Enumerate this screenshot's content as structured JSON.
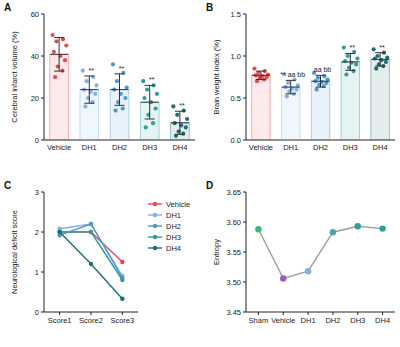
{
  "chart_data": [
    {
      "panel": "A",
      "type": "bar",
      "y_label": "Cerebral infarct volume (%)",
      "categories": [
        "Vehicle",
        "DH1",
        "DH2",
        "DH3",
        "DH4"
      ],
      "values": [
        40.8,
        24,
        24,
        18,
        8.2
      ],
      "errors": [
        8,
        6.5,
        7.5,
        8,
        5.5
      ],
      "points": [
        [
          50,
          48,
          47,
          45,
          42,
          40,
          38,
          35,
          33,
          30
        ],
        [
          33,
          30,
          28,
          26,
          24,
          23,
          22,
          20,
          18,
          16
        ],
        [
          36,
          32,
          28,
          25,
          24,
          22,
          20,
          18,
          15,
          14
        ],
        [
          28,
          26,
          24,
          22,
          20,
          18,
          15,
          12,
          8,
          6
        ],
        [
          16,
          14,
          12,
          10,
          8,
          7,
          6,
          4,
          3,
          2
        ]
      ],
      "colors": [
        "#e84a4f",
        "#7fb2e5",
        "#4a98d6",
        "#2f9e9a",
        "#1f6f72"
      ],
      "annotations": [
        null,
        "**",
        "**",
        "**",
        "**"
      ],
      "ylim": [
        0,
        60
      ],
      "yticks": [
        0,
        20,
        40,
        60
      ]
    },
    {
      "panel": "B",
      "type": "bar",
      "y_label": "Brain weight index (%)",
      "categories": [
        "Vehicle",
        "DH1",
        "DH2",
        "DH3",
        "DH4"
      ],
      "values": [
        0.77,
        0.63,
        0.7,
        0.93,
        0.96
      ],
      "errors": [
        0.05,
        0.08,
        0.07,
        0.1,
        0.08
      ],
      "points": [
        [
          0.85,
          0.82,
          0.8,
          0.78,
          0.77,
          0.76,
          0.75,
          0.74,
          0.72,
          0.7
        ],
        [
          0.78,
          0.72,
          0.68,
          0.65,
          0.63,
          0.61,
          0.6,
          0.58,
          0.55,
          0.52
        ],
        [
          0.8,
          0.76,
          0.74,
          0.72,
          0.7,
          0.69,
          0.68,
          0.66,
          0.64,
          0.6
        ],
        [
          1.1,
          1.05,
          1.0,
          0.97,
          0.94,
          0.92,
          0.9,
          0.86,
          0.82,
          0.78
        ],
        [
          1.08,
          1.04,
          1.0,
          0.98,
          0.97,
          0.95,
          0.93,
          0.9,
          0.88,
          0.85
        ]
      ],
      "colors": [
        "#e84a4f",
        "#7fb2e5",
        "#4a98d6",
        "#2f9e9a",
        "#1f6f72"
      ],
      "annotations": [
        null,
        "** aa bb",
        "aa bb",
        "**",
        "**"
      ],
      "ylim": [
        0,
        1.5
      ],
      "yticks": [
        {
          "value": 0,
          "label": "0.0"
        },
        0.5,
        {
          "value": 1,
          "label": "1.0"
        },
        1.5
      ]
    },
    {
      "panel": "C",
      "type": "line",
      "y_label": "Neurological deficit score",
      "categories": [
        "Score1",
        "Score2",
        "Score3"
      ],
      "series": [
        {
          "name": "Vehicle",
          "color": "#e84a4f",
          "values": [
            2.0,
            2.0,
            1.25
          ]
        },
        {
          "name": "DH1",
          "color": "#7fb2e5",
          "values": [
            2.08,
            2.2,
            0.9
          ]
        },
        {
          "name": "DH2",
          "color": "#4a98d6",
          "values": [
            1.92,
            2.2,
            0.85
          ]
        },
        {
          "name": "DH3",
          "color": "#2f9e9a",
          "values": [
            2.0,
            2.0,
            0.8
          ]
        },
        {
          "name": "DH4",
          "color": "#1f6f72",
          "values": [
            2.0,
            1.2,
            0.33
          ]
        }
      ],
      "marker": "circle",
      "legend": "right",
      "ylim": [
        0,
        3
      ],
      "yticks": [
        0,
        1,
        2,
        3
      ]
    },
    {
      "panel": "D",
      "type": "line",
      "y_label": "Entropy",
      "categories": [
        "Sham",
        "Vehicle",
        "DH1",
        "DH2",
        "DH3",
        "DH4"
      ],
      "values": [
        3.588,
        3.506,
        3.518,
        3.583,
        3.593,
        3.589
      ],
      "color": "#9e9e9e",
      "colors": [
        "#3cb878",
        "#9b59c6",
        "#7fb2e5",
        "#4aa8a0",
        "#2f9e9a",
        "#2f9e9a"
      ],
      "marker": "circle",
      "ylim": [
        3.45,
        3.65
      ],
      "yticks": [
        3.45,
        {
          "value": 3.5,
          "label": "3.50"
        },
        3.55,
        {
          "value": 3.6,
          "label": "3.60"
        },
        3.65
      ]
    }
  ]
}
